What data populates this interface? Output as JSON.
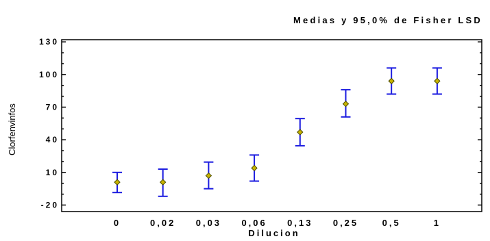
{
  "chart_data": {
    "type": "scatter",
    "title": "Medias y 95,0% de Fisher LSD",
    "xlabel": "Dilucion",
    "ylabel": "Clorfenvinfos",
    "categories": [
      "0",
      "0,02",
      "0,03",
      "0,06",
      "0,13",
      "0,25",
      "0,5",
      "1"
    ],
    "yticks": [
      "-20",
      "10",
      "40",
      "70",
      "100",
      "130"
    ],
    "ytick_values": [
      -20,
      10,
      40,
      70,
      100,
      130
    ],
    "ylim": [
      -26,
      132
    ],
    "series": [
      {
        "means": [
          1.0,
          1.0,
          7.0,
          14.0,
          47.0,
          73.0,
          94.0,
          94.0
        ],
        "lower": [
          -8.5,
          -12.0,
          -5.0,
          2.0,
          34.5,
          61.0,
          82.0,
          82.0
        ],
        "upper": [
          10.0,
          13.0,
          19.5,
          26.0,
          59.5,
          86.0,
          106.0,
          106.0
        ]
      }
    ],
    "colors": {
      "errorbar": "#1c1ce0",
      "marker_fill": "#c8b400",
      "marker_stroke": "#4a4a00",
      "axis": "#000000"
    },
    "grid": false
  }
}
